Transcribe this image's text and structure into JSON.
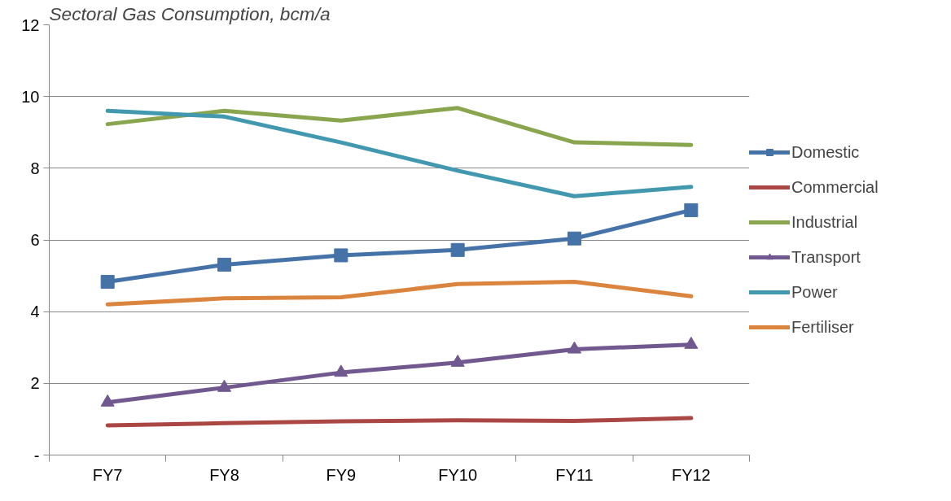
{
  "chart_data": {
    "type": "line",
    "title": "Sectoral Gas Consumption, bcm/a",
    "categories": [
      "FY7",
      "FY8",
      "FY9",
      "FY10",
      "FY11",
      "FY12"
    ],
    "series": [
      {
        "name": "Domestic",
        "color": "#4572a7",
        "marker": "square",
        "values": [
          4.83,
          5.31,
          5.57,
          5.72,
          6.04,
          6.83
        ]
      },
      {
        "name": "Commercial",
        "color": "#aa4643",
        "values": [
          0.83,
          0.89,
          0.94,
          0.97,
          0.95,
          1.03
        ]
      },
      {
        "name": "Industrial",
        "color": "#89a54e",
        "values": [
          9.23,
          9.6,
          9.33,
          9.68,
          8.72,
          8.65
        ]
      },
      {
        "name": "Transport",
        "color": "#71588f",
        "marker": "triangle",
        "values": [
          1.47,
          1.88,
          2.3,
          2.58,
          2.95,
          3.08
        ]
      },
      {
        "name": "Power",
        "color": "#4198af",
        "values": [
          9.6,
          9.44,
          8.72,
          7.93,
          7.22,
          7.48
        ]
      },
      {
        "name": "Fertiliser",
        "color": "#db843d",
        "values": [
          4.2,
          4.37,
          4.4,
          4.77,
          4.83,
          4.43
        ]
      }
    ],
    "ylim": [
      0,
      12
    ],
    "yticks": [
      {
        "value": 0,
        "label": "-"
      },
      2,
      4,
      6,
      8,
      10,
      12
    ],
    "grid": "y",
    "legend": "right"
  }
}
